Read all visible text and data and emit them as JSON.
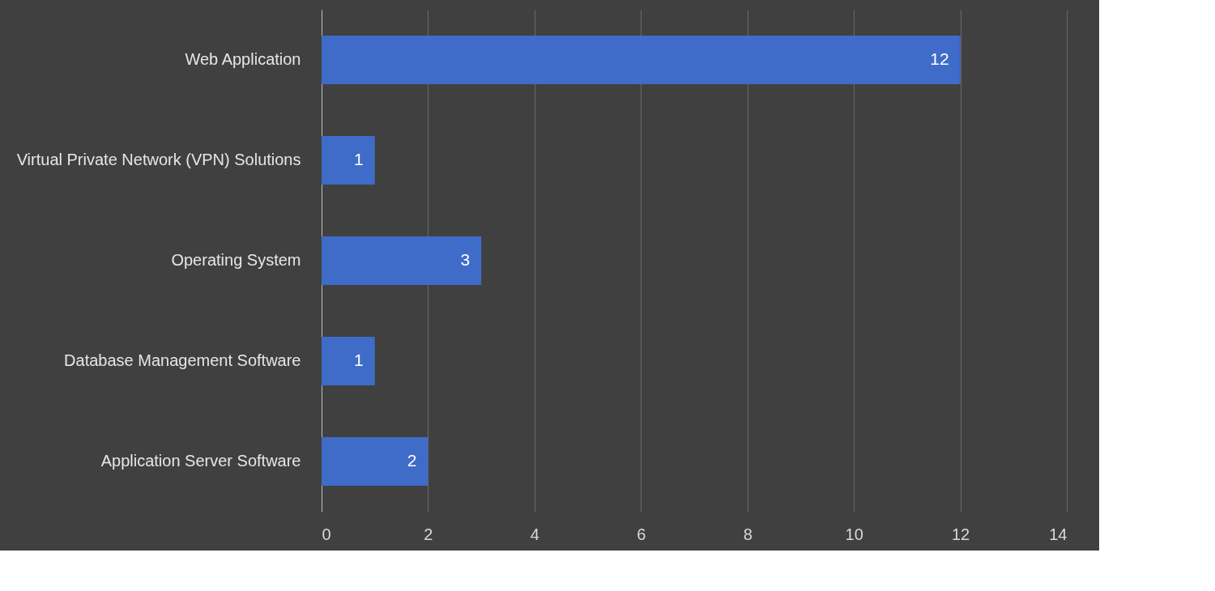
{
  "chart_data": {
    "type": "bar",
    "orientation": "horizontal",
    "categories": [
      "Web Application",
      "Virtual Private Network (VPN) Solutions",
      "Operating System",
      "Database Management Software",
      "Application Server Software"
    ],
    "values": [
      12,
      1,
      3,
      1,
      2
    ],
    "color": "#3f6cc9",
    "xlim": [
      0,
      14
    ],
    "xticks": [
      0,
      2,
      4,
      6,
      8,
      10,
      12,
      14
    ],
    "grid": "x",
    "data_labels": true
  }
}
